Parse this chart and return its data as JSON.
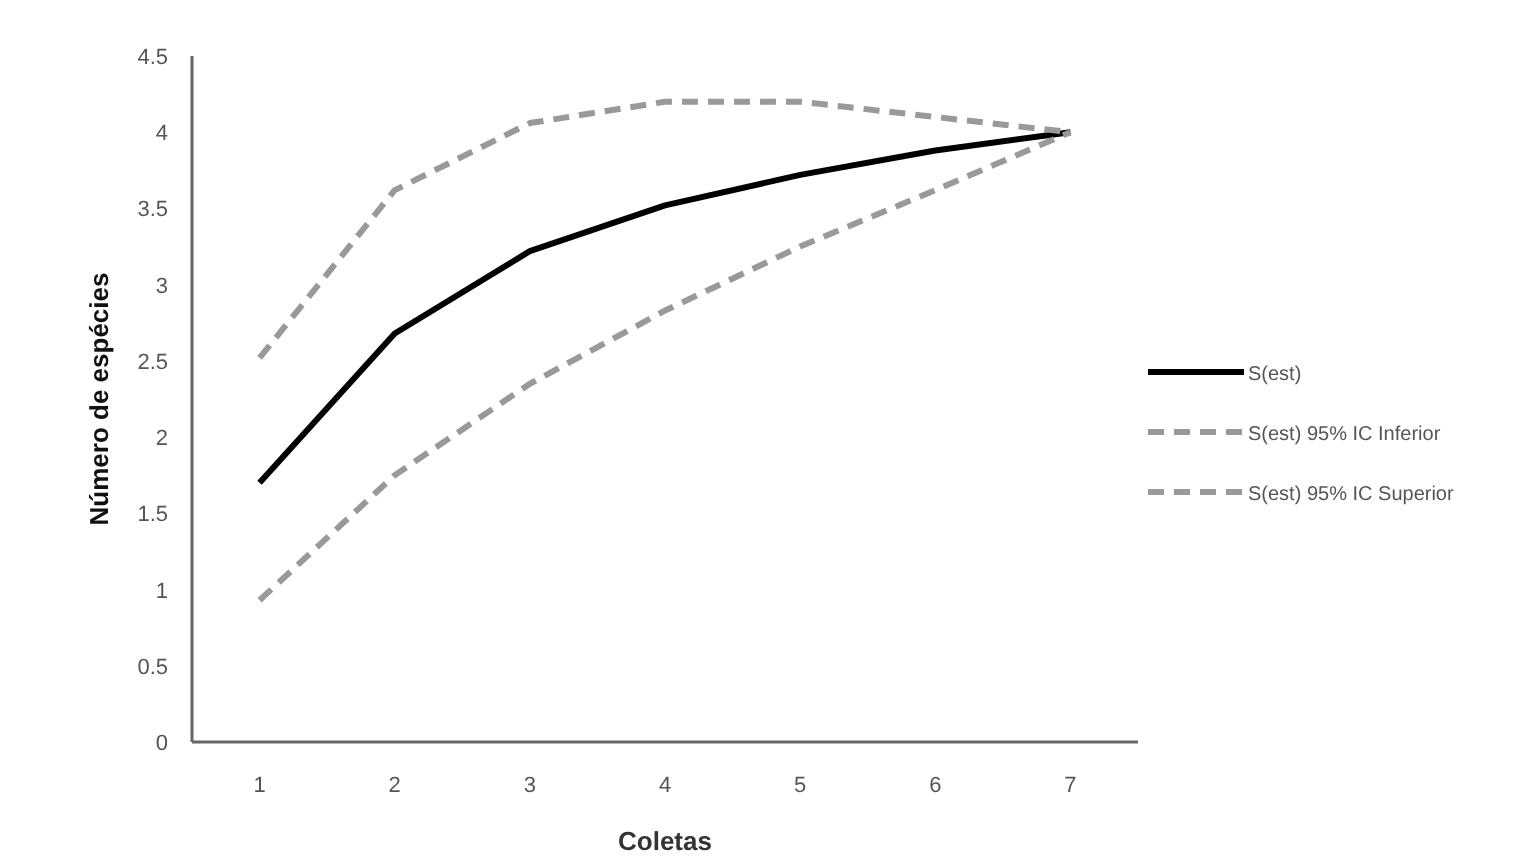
{
  "chart_data": {
    "type": "line",
    "xlabel": "Coletas",
    "ylabel": "Número de espécies",
    "categories": [
      "1",
      "2",
      "3",
      "4",
      "5",
      "6",
      "7"
    ],
    "ylim": [
      0,
      4.5
    ],
    "yticks": [
      0,
      0.5,
      1,
      1.5,
      2,
      2.5,
      3,
      3.5,
      4,
      4.5
    ],
    "grid": false,
    "legend": "right",
    "marker": "none",
    "series": [
      {
        "name": "S(est)",
        "color": "#000000",
        "line_style": "solid",
        "values": [
          1.7,
          2.68,
          3.22,
          3.52,
          3.72,
          3.88,
          4.0
        ]
      },
      {
        "name": "S(est) 95% IC Inferior",
        "color": "#999999",
        "line_style": "dashed",
        "values": [
          2.52,
          3.62,
          4.06,
          4.2,
          4.2,
          4.1,
          4.0
        ]
      },
      {
        "name": "S(est) 95% IC Superior",
        "color": "#999999",
        "line_style": "dashed",
        "values": [
          0.93,
          1.75,
          2.35,
          2.83,
          3.25,
          3.62,
          4.0
        ]
      }
    ]
  }
}
